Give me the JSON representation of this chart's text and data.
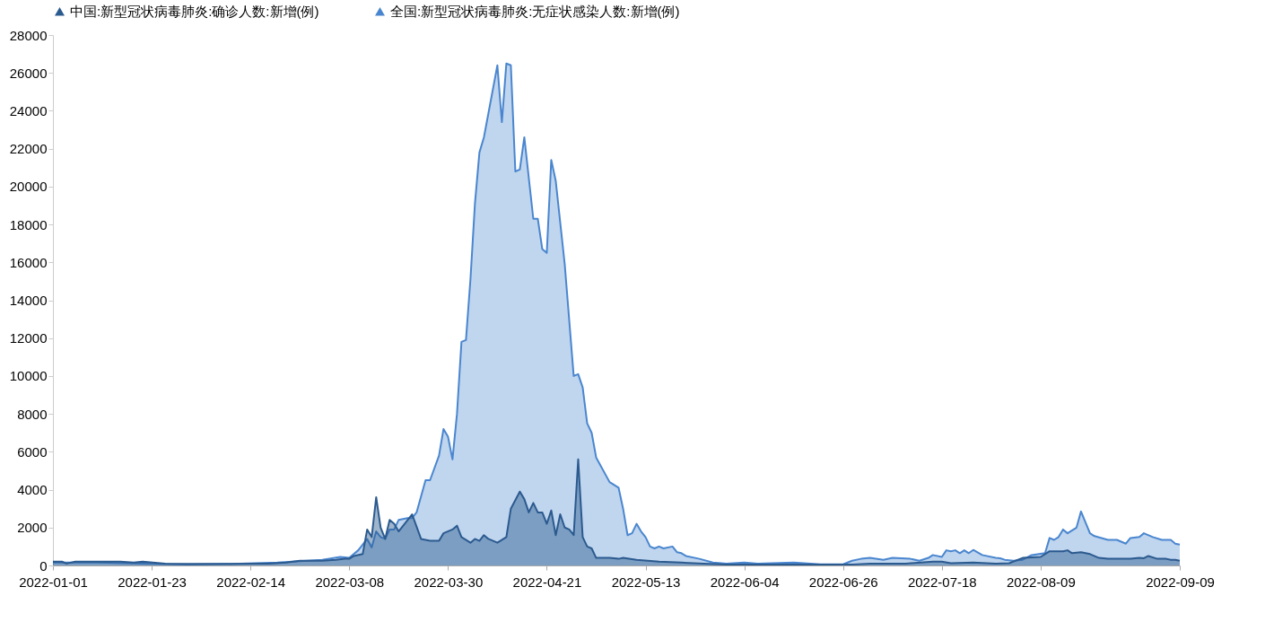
{
  "chart_data": {
    "type": "area",
    "xlim": [
      "2022-01-01",
      "2022-09-09"
    ],
    "xticks": [
      "2022-01-01",
      "2022-01-23",
      "2022-02-14",
      "2022-03-08",
      "2022-03-30",
      "2022-04-21",
      "2022-05-13",
      "2022-06-04",
      "2022-06-26",
      "2022-07-18",
      "2022-08-09",
      "2022-09-09"
    ],
    "ylim": [
      0,
      28000
    ],
    "yticks": [
      0,
      2000,
      4000,
      6000,
      8000,
      10000,
      12000,
      14000,
      16000,
      18000,
      20000,
      22000,
      24000,
      26000,
      28000
    ],
    "legend": "top",
    "grid": false,
    "series": [
      {
        "name": "中国:新型冠状病毒肺炎:确诊人数:新增(例)",
        "color": "#2b5a8f",
        "x": [
          "2022-01-01",
          "2022-01-03",
          "2022-01-04",
          "2022-01-06",
          "2022-01-11",
          "2022-01-16",
          "2022-01-19",
          "2022-01-21",
          "2022-01-26",
          "2022-01-31",
          "2022-02-05",
          "2022-02-10",
          "2022-02-15",
          "2022-02-18",
          "2022-02-22",
          "2022-02-25",
          "2022-03-02",
          "2022-03-05",
          "2022-03-07",
          "2022-03-08",
          "2022-03-09",
          "2022-03-11",
          "2022-03-12",
          "2022-03-13",
          "2022-03-14",
          "2022-03-15",
          "2022-03-16",
          "2022-03-17",
          "2022-03-18",
          "2022-03-19",
          "2022-03-22",
          "2022-03-24",
          "2022-03-26",
          "2022-03-28",
          "2022-03-29",
          "2022-03-31",
          "2022-04-01",
          "2022-04-02",
          "2022-04-04",
          "2022-04-05",
          "2022-04-06",
          "2022-04-07",
          "2022-04-08",
          "2022-04-10",
          "2022-04-12",
          "2022-04-13",
          "2022-04-15",
          "2022-04-16",
          "2022-04-17",
          "2022-04-18",
          "2022-04-19",
          "2022-04-20",
          "2022-04-21",
          "2022-04-22",
          "2022-04-23",
          "2022-04-24",
          "2022-04-25",
          "2022-04-26",
          "2022-04-27",
          "2022-04-28",
          "2022-04-29",
          "2022-04-30",
          "2022-05-01",
          "2022-05-02",
          "2022-05-05",
          "2022-05-07",
          "2022-05-08",
          "2022-05-11",
          "2022-05-16",
          "2022-05-21",
          "2022-05-26",
          "2022-05-31",
          "2022-06-15",
          "2022-06-28",
          "2022-07-02",
          "2022-07-10",
          "2022-07-16",
          "2022-07-18",
          "2022-07-20",
          "2022-07-25",
          "2022-07-30",
          "2022-08-02",
          "2022-08-05",
          "2022-08-09",
          "2022-08-11",
          "2022-08-14",
          "2022-08-15",
          "2022-08-16",
          "2022-08-18",
          "2022-08-20",
          "2022-08-22",
          "2022-08-24",
          "2022-08-26",
          "2022-08-29",
          "2022-08-31",
          "2022-09-01",
          "2022-09-02",
          "2022-09-04",
          "2022-09-06",
          "2022-09-07",
          "2022-09-08",
          "2022-09-09"
        ],
        "values": [
          200,
          200,
          100,
          200,
          200,
          200,
          150,
          200,
          100,
          80,
          80,
          80,
          100,
          100,
          150,
          250,
          250,
          300,
          350,
          350,
          500,
          600,
          1900,
          1500,
          3600,
          2000,
          1400,
          2400,
          2200,
          1800,
          2700,
          1400,
          1300,
          1300,
          1700,
          1900,
          2100,
          1500,
          1200,
          1400,
          1300,
          1600,
          1400,
          1200,
          1500,
          3000,
          3900,
          3500,
          2800,
          3300,
          2800,
          2800,
          2200,
          2900,
          1600,
          2700,
          2000,
          1900,
          1600,
          5600,
          1500,
          1000,
          900,
          400,
          400,
          350,
          400,
          300,
          200,
          150,
          100,
          50,
          50,
          50,
          100,
          100,
          200,
          200,
          120,
          150,
          100,
          120,
          400,
          450,
          750,
          750,
          800,
          650,
          700,
          600,
          400,
          350,
          350,
          350,
          400,
          380,
          500,
          350,
          350,
          300,
          300,
          250
        ]
      },
      {
        "name": "全国:新型冠状病毒肺炎:无症状感染人数:新增(例)",
        "color": "#4a86cf",
        "x": [
          "2022-01-01",
          "2022-01-11",
          "2022-01-21",
          "2022-01-31",
          "2022-02-10",
          "2022-02-20",
          "2022-03-02",
          "2022-03-06",
          "2022-03-08",
          "2022-03-10",
          "2022-03-12",
          "2022-03-13",
          "2022-03-14",
          "2022-03-15",
          "2022-03-16",
          "2022-03-17",
          "2022-03-18",
          "2022-03-19",
          "2022-03-21",
          "2022-03-22",
          "2022-03-23",
          "2022-03-25",
          "2022-03-26",
          "2022-03-28",
          "2022-03-29",
          "2022-03-30",
          "2022-03-31",
          "2022-04-01",
          "2022-04-02",
          "2022-04-03",
          "2022-04-04",
          "2022-04-05",
          "2022-04-06",
          "2022-04-07",
          "2022-04-10",
          "2022-04-11",
          "2022-04-12",
          "2022-04-13",
          "2022-04-14",
          "2022-04-15",
          "2022-04-16",
          "2022-04-18",
          "2022-04-19",
          "2022-04-20",
          "2022-04-21",
          "2022-04-22",
          "2022-04-23",
          "2022-04-25",
          "2022-04-27",
          "2022-04-28",
          "2022-04-29",
          "2022-04-30",
          "2022-05-01",
          "2022-05-02",
          "2022-05-05",
          "2022-05-07",
          "2022-05-08",
          "2022-05-09",
          "2022-05-10",
          "2022-05-11",
          "2022-05-12",
          "2022-05-13",
          "2022-05-14",
          "2022-05-15",
          "2022-05-16",
          "2022-05-17",
          "2022-05-19",
          "2022-05-20",
          "2022-05-21",
          "2022-05-22",
          "2022-05-25",
          "2022-05-28",
          "2022-05-31",
          "2022-06-04",
          "2022-06-07",
          "2022-06-15",
          "2022-06-21",
          "2022-06-26",
          "2022-06-28",
          "2022-06-30",
          "2022-07-02",
          "2022-07-05",
          "2022-07-07",
          "2022-07-11",
          "2022-07-13",
          "2022-07-15",
          "2022-07-16",
          "2022-07-18",
          "2022-07-19",
          "2022-07-20",
          "2022-07-21",
          "2022-07-22",
          "2022-07-23",
          "2022-07-24",
          "2022-07-25",
          "2022-07-27",
          "2022-07-30",
          "2022-07-31",
          "2022-08-01",
          "2022-08-03",
          "2022-08-05",
          "2022-08-07",
          "2022-08-10",
          "2022-08-11",
          "2022-08-12",
          "2022-08-13",
          "2022-08-14",
          "2022-08-15",
          "2022-08-17",
          "2022-08-18",
          "2022-08-20",
          "2022-08-21",
          "2022-08-24",
          "2022-08-26",
          "2022-08-28",
          "2022-08-29",
          "2022-08-31",
          "2022-09-01",
          "2022-09-03",
          "2022-09-05",
          "2022-09-07",
          "2022-09-08",
          "2022-09-09"
        ],
        "values": [
          150,
          150,
          100,
          50,
          80,
          150,
          300,
          450,
          400,
          800,
          1400,
          950,
          1800,
          1500,
          1400,
          1900,
          1900,
          2400,
          2500,
          2500,
          2800,
          4500,
          4500,
          5800,
          7200,
          6800,
          5600,
          8000,
          11800,
          11900,
          15100,
          19100,
          21800,
          22600,
          26400,
          23400,
          26500,
          26400,
          20800,
          20900,
          22600,
          18300,
          18300,
          16700,
          16500,
          21400,
          20300,
          15900,
          10000,
          10100,
          9400,
          7500,
          7000,
          5700,
          4400,
          4100,
          3000,
          1600,
          1700,
          2200,
          1800,
          1500,
          1000,
          900,
          1000,
          900,
          1000,
          700,
          650,
          500,
          350,
          150,
          100,
          150,
          100,
          150,
          60,
          60,
          250,
          350,
          400,
          300,
          400,
          350,
          250,
          400,
          550,
          450,
          800,
          750,
          800,
          650,
          800,
          650,
          820,
          550,
          400,
          380,
          300,
          250,
          300,
          550,
          650,
          1450,
          1350,
          1500,
          1900,
          1700,
          2000,
          2850,
          1700,
          1550,
          1350,
          1350,
          1150,
          1450,
          1500,
          1700,
          1500,
          1350,
          1350,
          1150,
          1100
        ]
      }
    ]
  }
}
